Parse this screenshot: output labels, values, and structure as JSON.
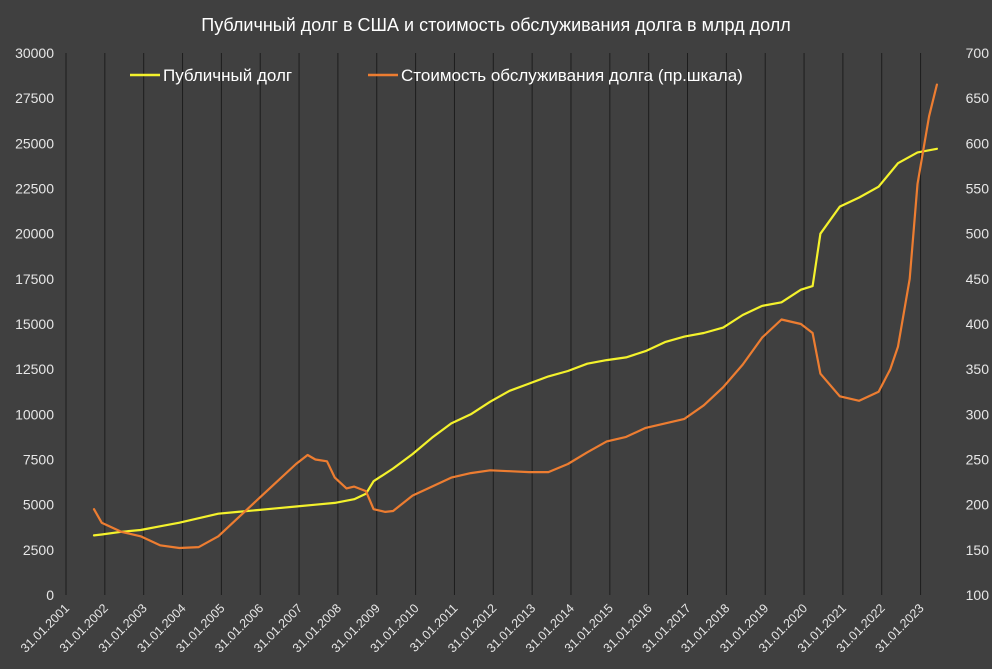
{
  "chart_data": {
    "type": "line",
    "title": "Публичный долг в США и стоимость обслуживания долга в млрд долл",
    "xlabel": "",
    "ylabel": "",
    "x_tick_labels": [
      "31.01.2001",
      "31.01.2002",
      "31.01.2003",
      "31.01.2004",
      "31.01.2005",
      "31.01.2006",
      "31.01.2007",
      "31.01.2008",
      "31.01.2009",
      "31.01.2010",
      "31.01.2011",
      "31.01.2012",
      "31.01.2013",
      "31.01.2014",
      "31.01.2015",
      "31.01.2016",
      "31.01.2017",
      "31.01.2018",
      "31.01.2019",
      "31.01.2020",
      "31.01.2021",
      "31.01.2022",
      "31.01.2023"
    ],
    "xlim": [
      2001.08,
      2023.58
    ],
    "y_left": {
      "lim": [
        0,
        30000
      ],
      "ticks": [
        "0",
        "2500",
        "5000",
        "7500",
        "10000",
        "12500",
        "15000",
        "17500",
        "20000",
        "22500",
        "25000",
        "27500",
        "30000"
      ]
    },
    "y_right": {
      "lim": [
        100,
        700
      ],
      "ticks": [
        "100",
        "150",
        "200",
        "250",
        "300",
        "350",
        "400",
        "450",
        "500",
        "550",
        "600",
        "650",
        "700"
      ]
    },
    "grid": "vertical",
    "legend_position": "top",
    "series": [
      {
        "name": "Публичный долг",
        "axis": "left",
        "color": "#f4f22c",
        "x": [
          2001.8,
          2002.0,
          2002.5,
          2003.0,
          2003.5,
          2004.0,
          2004.5,
          2005.0,
          2005.5,
          2006.0,
          2006.5,
          2007.0,
          2007.5,
          2008.0,
          2008.5,
          2008.8,
          2009.0,
          2009.5,
          2010.0,
          2010.5,
          2011.0,
          2011.5,
          2012.0,
          2012.5,
          2013.0,
          2013.5,
          2014.0,
          2014.5,
          2015.0,
          2015.5,
          2016.0,
          2016.5,
          2017.0,
          2017.5,
          2018.0,
          2018.5,
          2019.0,
          2019.5,
          2020.0,
          2020.3,
          2020.5,
          2021.0,
          2021.5,
          2022.0,
          2022.5,
          2023.0,
          2023.5
        ],
        "values": [
          3300,
          3350,
          3500,
          3600,
          3800,
          4000,
          4250,
          4500,
          4600,
          4700,
          4800,
          4900,
          5000,
          5100,
          5300,
          5600,
          6300,
          7000,
          7800,
          8700,
          9500,
          10000,
          10700,
          11300,
          11700,
          12100,
          12400,
          12800,
          13000,
          13150,
          13500,
          14000,
          14300,
          14500,
          14800,
          15500,
          16000,
          16200,
          16900,
          17100,
          20000,
          21500,
          22000,
          22600,
          23900,
          24500,
          24700
        ]
      },
      {
        "name": "Стоимость обслуживания долга (пр.шкала)",
        "axis": "right",
        "color": "#ed7d31",
        "x": [
          2001.8,
          2002.0,
          2002.5,
          2003.0,
          2003.5,
          2004.0,
          2004.5,
          2005.0,
          2005.5,
          2006.0,
          2006.5,
          2007.0,
          2007.3,
          2007.5,
          2007.8,
          2008.0,
          2008.3,
          2008.5,
          2008.8,
          2009.0,
          2009.3,
          2009.5,
          2010.0,
          2010.5,
          2011.0,
          2011.5,
          2012.0,
          2012.5,
          2013.0,
          2013.5,
          2014.0,
          2014.5,
          2015.0,
          2015.5,
          2016.0,
          2016.5,
          2017.0,
          2017.5,
          2018.0,
          2018.5,
          2019.0,
          2019.5,
          2020.0,
          2020.3,
          2020.5,
          2021.0,
          2021.5,
          2022.0,
          2022.3,
          2022.5,
          2022.8,
          2023.0,
          2023.3,
          2023.5
        ],
        "values": [
          195,
          180,
          170,
          165,
          155,
          152,
          153,
          165,
          185,
          205,
          225,
          245,
          255,
          250,
          248,
          230,
          218,
          220,
          215,
          195,
          192,
          193,
          210,
          220,
          230,
          235,
          238,
          237,
          236,
          236,
          245,
          258,
          270,
          275,
          285,
          290,
          295,
          310,
          330,
          355,
          385,
          405,
          400,
          390,
          345,
          320,
          315,
          325,
          350,
          375,
          450,
          555,
          630,
          665
        ]
      }
    ]
  }
}
